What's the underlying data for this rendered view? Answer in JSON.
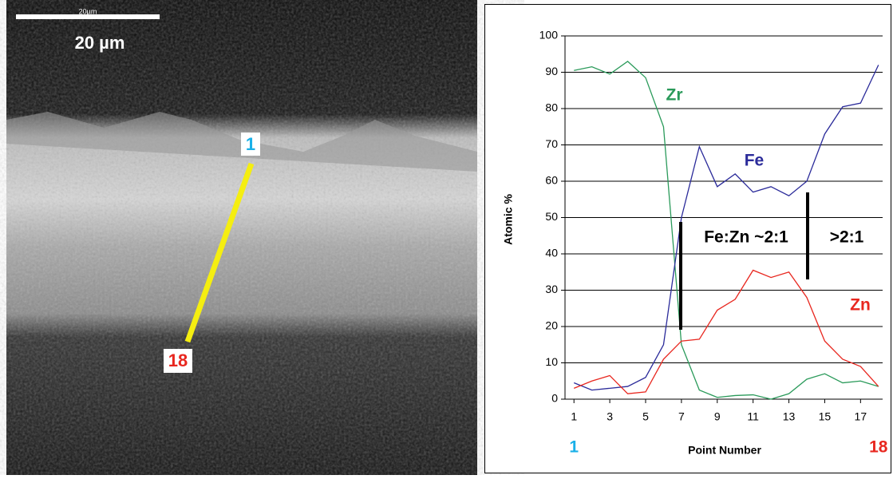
{
  "micrograph": {
    "scale_bar_label": "20µm",
    "scale_label": "20 µm",
    "line_start_label": "1",
    "line_end_label": "18"
  },
  "chart_data": {
    "type": "line",
    "x": [
      1,
      2,
      3,
      4,
      5,
      6,
      7,
      8,
      9,
      10,
      11,
      12,
      13,
      14,
      15,
      16,
      17,
      18
    ],
    "series": [
      {
        "name": "Zr",
        "color": "#2a9a5a",
        "values": [
          90.5,
          91.5,
          89.5,
          93,
          88.5,
          75,
          15,
          2.5,
          0.5,
          1,
          1.2,
          0,
          1.5,
          5.5,
          7,
          4.5,
          5,
          3.5
        ]
      },
      {
        "name": "Fe",
        "color": "#2b2b9a",
        "values": [
          4.5,
          2.5,
          3,
          3.5,
          6,
          15,
          50,
          69.5,
          58.5,
          62,
          57,
          58.5,
          56,
          60,
          73,
          80.5,
          81.5,
          92
        ]
      },
      {
        "name": "Zn",
        "color": "#e8271f",
        "values": [
          3,
          5,
          6.5,
          1.5,
          2,
          11,
          16,
          16.5,
          24.5,
          27.5,
          35.5,
          33.5,
          35,
          28,
          16,
          11,
          9,
          3.5
        ]
      }
    ],
    "xlim": [
      0.5,
      18.5
    ],
    "ylim": [
      0,
      100
    ],
    "xticks": [
      1,
      3,
      5,
      7,
      9,
      11,
      13,
      15,
      17
    ],
    "yticks": [
      0,
      10,
      20,
      30,
      40,
      50,
      60,
      70,
      80,
      90,
      100
    ],
    "grid": true,
    "x_label": "Point Number",
    "y_label": "Atomic %",
    "axis_end_labels": [
      "1",
      "18"
    ],
    "annotations": [
      "Fe:Zn ~2:1",
      ">2:1"
    ]
  }
}
